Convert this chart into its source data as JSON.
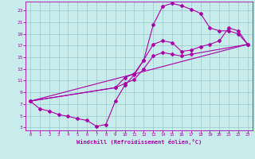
{
  "background_color": "#c8ecec",
  "grid_color": "#a0d0d0",
  "line_color": "#aa00aa",
  "marker_color": "#aa00aa",
  "xlabel": "Windchill (Refroidissement éolien,°C)",
  "xlabel_color": "#aa00aa",
  "tick_color": "#aa00aa",
  "xlim": [
    -0.5,
    23.5
  ],
  "ylim": [
    2.5,
    24.5
  ],
  "xticks": [
    0,
    1,
    2,
    3,
    4,
    5,
    6,
    7,
    8,
    9,
    10,
    11,
    12,
    13,
    14,
    15,
    16,
    17,
    18,
    19,
    20,
    21,
    22,
    23
  ],
  "yticks": [
    3,
    5,
    7,
    9,
    11,
    13,
    15,
    17,
    19,
    21,
    23
  ],
  "curve1_x": [
    0,
    1,
    2,
    3,
    4,
    5,
    6,
    7,
    8,
    9,
    10,
    11,
    12,
    13,
    14,
    15,
    16,
    17,
    18,
    19,
    20,
    21,
    22,
    23
  ],
  "curve1_y": [
    7.5,
    6.2,
    5.8,
    5.2,
    4.9,
    4.5,
    4.2,
    3.2,
    3.5,
    7.5,
    10.2,
    12.0,
    14.5,
    20.5,
    23.7,
    24.2,
    23.8,
    23.2,
    22.5,
    20.0,
    19.5,
    19.5,
    19.0,
    17.2
  ],
  "curve2_x": [
    0,
    9,
    10,
    11,
    12,
    13,
    14,
    15,
    16,
    17,
    18,
    19,
    20,
    21,
    22,
    23
  ],
  "curve2_y": [
    7.5,
    9.8,
    11.5,
    12.2,
    14.5,
    17.2,
    17.8,
    17.5,
    16.0,
    16.2,
    16.8,
    17.2,
    17.8,
    20.0,
    19.5,
    17.2
  ],
  "curve3_x": [
    0,
    9,
    10,
    11,
    12,
    13,
    14,
    15,
    16,
    17,
    23
  ],
  "curve3_y": [
    7.5,
    9.8,
    10.5,
    11.2,
    13.0,
    15.2,
    15.8,
    15.5,
    15.2,
    15.5,
    17.2
  ]
}
